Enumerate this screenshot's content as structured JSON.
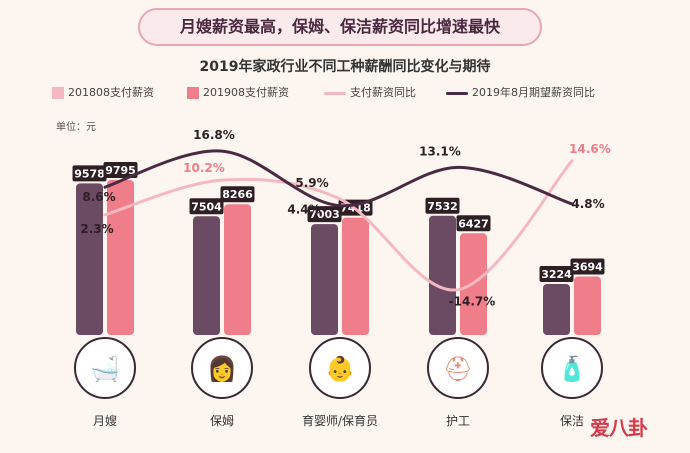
{
  "banner": "月嫂薪资最高，保姆、保洁薪资同比增速最快",
  "unit_label": "单位：元",
  "watermark": "爱八卦",
  "colors": {
    "bar_2018": "#6b4a63",
    "bar_2019": "#ef7d8a",
    "line_yoy": "#f6b8c0",
    "line_expected": "#4a2a42",
    "value_tag": "#2e1f25"
  },
  "chart_data": {
    "type": "bar",
    "title": "2019年家政行业不同工种薪酬同比变化与期待",
    "categories": [
      "月嫂",
      "保姆",
      "育婴师/保育员",
      "护工",
      "保洁"
    ],
    "category_icons": [
      "baby-bath-icon",
      "nanny-icon",
      "infant-icon",
      "first-aid-kit-icon",
      "cleaning-spray-icon"
    ],
    "series": [
      {
        "name": "201808支付薪资",
        "kind": "bar",
        "values": [
          9578,
          7504,
          7003,
          7532,
          3224
        ]
      },
      {
        "name": "201908支付薪资",
        "kind": "bar",
        "values": [
          9795,
          8266,
          7418,
          6427,
          3694
        ]
      },
      {
        "name": "支付薪资同比",
        "kind": "line",
        "values": [
          2.3,
          10.2,
          5.9,
          -14.7,
          14.6
        ],
        "labels": [
          "2.3%",
          "10.2%",
          "5.9%",
          "-14.7%",
          "14.6%"
        ]
      },
      {
        "name": "2019年8月期望薪资同比",
        "kind": "line",
        "values": [
          8.6,
          16.8,
          4.4,
          13.1,
          4.8
        ],
        "labels": [
          "8.6%",
          "16.8%",
          "4.4%",
          "13.1%",
          "4.8%"
        ]
      }
    ],
    "legend_position": "top",
    "grid": false
  }
}
